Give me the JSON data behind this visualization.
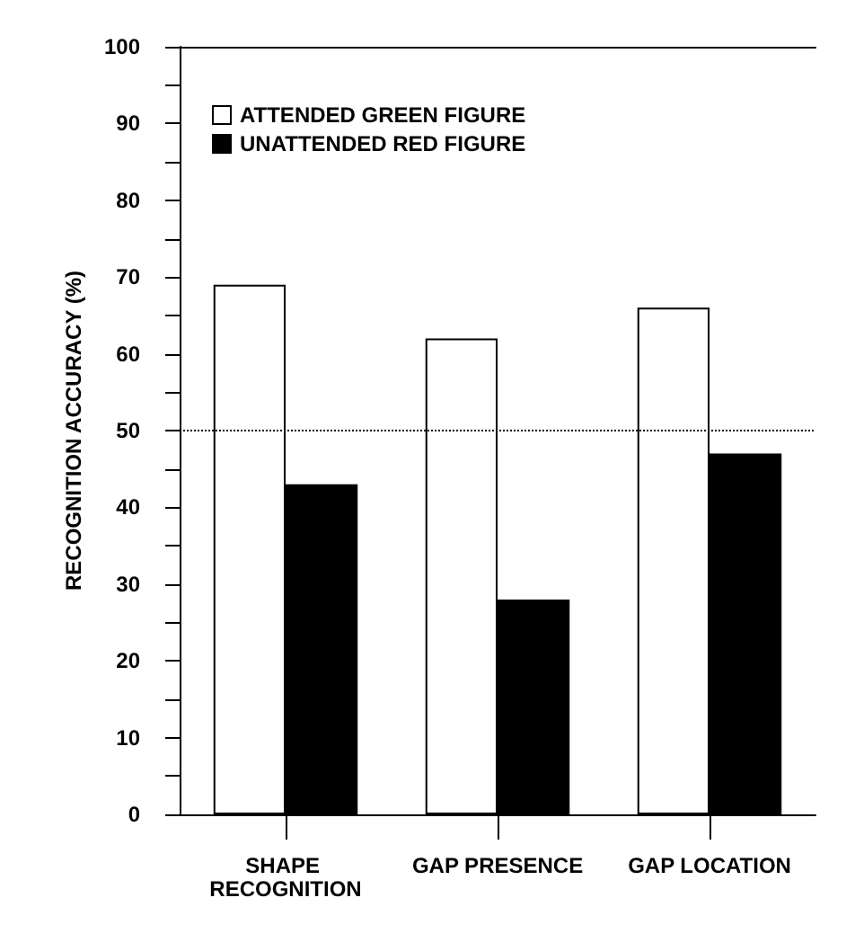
{
  "chart_data": {
    "type": "bar",
    "ylabel": "RECOGNITION ACCURACY (%)",
    "categories": [
      "SHAPE RECOGNITION",
      "GAP PRESENCE",
      "GAP LOCATION"
    ],
    "series": [
      {
        "name": "ATTENDED GREEN FIGURE",
        "color": "#ffffff",
        "values": [
          69,
          62,
          66
        ]
      },
      {
        "name": "UNATTENDED RED FIGURE",
        "color": "#000000",
        "values": [
          43,
          28,
          47
        ]
      }
    ],
    "ylim": [
      0,
      100
    ],
    "yticks": [
      0,
      {
        "value": 5,
        "label": null
      },
      10,
      {
        "value": 15,
        "label": null
      },
      20,
      {
        "value": 25,
        "label": null
      },
      30,
      {
        "value": 35,
        "label": null
      },
      40,
      {
        "value": 45,
        "label": null
      },
      50,
      {
        "value": 55,
        "label": null
      },
      60,
      {
        "value": 65,
        "label": null
      },
      70,
      {
        "value": 75,
        "label": null
      },
      80,
      {
        "value": 85,
        "label": null
      },
      90,
      {
        "value": 95,
        "label": null
      },
      100
    ],
    "ref_lines": [
      {
        "axis": "y",
        "value": 50,
        "line_style": "dotted"
      }
    ],
    "legend": "top left",
    "grid": false
  }
}
